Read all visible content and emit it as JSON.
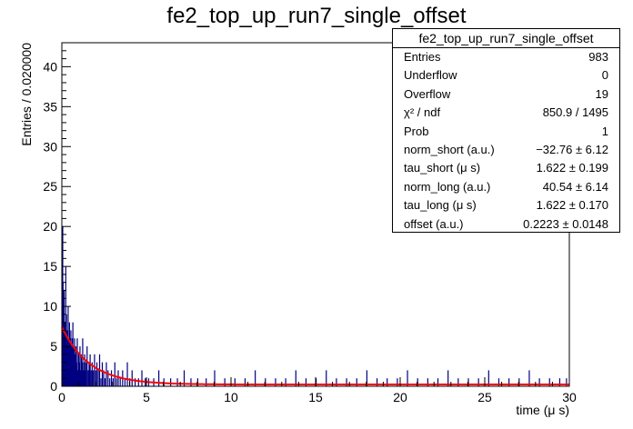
{
  "title": "fe2_top_up_run7_single_offset",
  "stats": {
    "header": "fe2_top_up_run7_single_offset",
    "rows": [
      {
        "label": "Entries",
        "value": "983"
      },
      {
        "label": "Underflow",
        "value": "0"
      },
      {
        "label": "Overflow",
        "value": "19"
      },
      {
        "label": "χ² / ndf",
        "value": "850.9 / 1495"
      },
      {
        "label": "Prob",
        "value": "1"
      },
      {
        "label": "norm_short (a.u.)",
        "value": "−32.76 ± 6.12"
      },
      {
        "label": "tau_short (μ s)",
        "value": "1.622 ± 0.199"
      },
      {
        "label": "norm_long (a.u.)",
        "value": "40.54 ± 6.14"
      },
      {
        "label": "tau_long (μ s)",
        "value": "1.622 ± 0.170"
      },
      {
        "label": "offset (a.u.)",
        "value": "0.2223 ± 0.0148"
      }
    ]
  },
  "colors": {
    "histogram": "#000080",
    "fit": "#ff0000",
    "axis": "#000000"
  },
  "chart_data": {
    "type": "histogram",
    "xlabel": "time (μ s)",
    "ylabel": "Entries / 0.020000",
    "xlim": [
      0,
      30
    ],
    "ylim": [
      0,
      43
    ],
    "xticks": [
      0,
      5,
      10,
      15,
      20,
      25,
      30
    ],
    "yticks": [
      0,
      5,
      10,
      15,
      20,
      25,
      30,
      35,
      40
    ],
    "bin_width": 0.02,
    "bins": [
      [
        0.0,
        3
      ],
      [
        0.02,
        20
      ],
      [
        0.04,
        13
      ],
      [
        0.06,
        9
      ],
      [
        0.08,
        7
      ],
      [
        0.1,
        12
      ],
      [
        0.12,
        6
      ],
      [
        0.14,
        4
      ],
      [
        0.16,
        8
      ],
      [
        0.18,
        5
      ],
      [
        0.2,
        15
      ],
      [
        0.22,
        6
      ],
      [
        0.24,
        9
      ],
      [
        0.26,
        5
      ],
      [
        0.28,
        3
      ],
      [
        0.3,
        7
      ],
      [
        0.32,
        4
      ],
      [
        0.34,
        10
      ],
      [
        0.36,
        6
      ],
      [
        0.38,
        2
      ],
      [
        0.4,
        5
      ],
      [
        0.42,
        8
      ],
      [
        0.44,
        3
      ],
      [
        0.46,
        6
      ],
      [
        0.48,
        4
      ],
      [
        0.5,
        7
      ],
      [
        0.52,
        2
      ],
      [
        0.54,
        5
      ],
      [
        0.56,
        3
      ],
      [
        0.58,
        6
      ],
      [
        0.6,
        4
      ],
      [
        0.62,
        8
      ],
      [
        0.64,
        2
      ],
      [
        0.66,
        5
      ],
      [
        0.68,
        3
      ],
      [
        0.7,
        4
      ],
      [
        0.72,
        6
      ],
      [
        0.74,
        2
      ],
      [
        0.76,
        4
      ],
      [
        0.78,
        3
      ],
      [
        0.8,
        5
      ],
      [
        0.84,
        3
      ],
      [
        0.88,
        6
      ],
      [
        0.92,
        2
      ],
      [
        0.96,
        4
      ],
      [
        1.0,
        3
      ],
      [
        1.04,
        5
      ],
      [
        1.08,
        2
      ],
      [
        1.12,
        4
      ],
      [
        1.16,
        3
      ],
      [
        1.2,
        6
      ],
      [
        1.24,
        2
      ],
      [
        1.28,
        3
      ],
      [
        1.32,
        4
      ],
      [
        1.36,
        2
      ],
      [
        1.4,
        3
      ],
      [
        1.46,
        5
      ],
      [
        1.52,
        2
      ],
      [
        1.58,
        3
      ],
      [
        1.64,
        4
      ],
      [
        1.7,
        2
      ],
      [
        1.76,
        3
      ],
      [
        1.82,
        2
      ],
      [
        1.9,
        4
      ],
      [
        1.96,
        2
      ],
      [
        2.04,
        3
      ],
      [
        2.12,
        2
      ],
      [
        2.2,
        4
      ],
      [
        2.28,
        1
      ],
      [
        2.36,
        3
      ],
      [
        2.44,
        2
      ],
      [
        2.52,
        1
      ],
      [
        2.6,
        3
      ],
      [
        2.7,
        2
      ],
      [
        2.8,
        1
      ],
      [
        2.9,
        2
      ],
      [
        3.0,
        1
      ],
      [
        3.1,
        3
      ],
      [
        3.2,
        1
      ],
      [
        3.3,
        2
      ],
      [
        3.42,
        1
      ],
      [
        3.56,
        2
      ],
      [
        3.7,
        1
      ],
      [
        3.84,
        3
      ],
      [
        3.98,
        1
      ],
      [
        4.12,
        2
      ],
      [
        4.3,
        1
      ],
      [
        4.5,
        1
      ],
      [
        4.7,
        2
      ],
      [
        4.9,
        1
      ],
      [
        5.1,
        1
      ],
      [
        5.4,
        1
      ],
      [
        5.7,
        2
      ],
      [
        6.0,
        1
      ],
      [
        6.4,
        1
      ],
      [
        6.8,
        1
      ],
      [
        7.2,
        2
      ],
      [
        7.6,
        1
      ],
      [
        8.0,
        1
      ],
      [
        8.5,
        1
      ],
      [
        9.0,
        2
      ],
      [
        9.6,
        1
      ],
      [
        10.2,
        1
      ],
      [
        10.8,
        1
      ],
      [
        11.4,
        2
      ],
      [
        12.0,
        1
      ],
      [
        12.6,
        1
      ],
      [
        13.2,
        1
      ],
      [
        13.8,
        2
      ],
      [
        14.4,
        1
      ],
      [
        15.0,
        1
      ],
      [
        15.6,
        2
      ],
      [
        16.2,
        1
      ],
      [
        16.8,
        1
      ],
      [
        17.4,
        1
      ],
      [
        18.0,
        2
      ],
      [
        18.6,
        1
      ],
      [
        19.2,
        1
      ],
      [
        19.8,
        1
      ],
      [
        20.4,
        2
      ],
      [
        21.0,
        1
      ],
      [
        21.6,
        1
      ],
      [
        22.2,
        1
      ],
      [
        22.8,
        2
      ],
      [
        23.4,
        1
      ],
      [
        24.0,
        1
      ],
      [
        24.6,
        1
      ],
      [
        25.2,
        2
      ],
      [
        25.8,
        1
      ],
      [
        26.4,
        1
      ],
      [
        27.0,
        1
      ],
      [
        27.6,
        2
      ],
      [
        28.2,
        1
      ],
      [
        28.8,
        1
      ],
      [
        29.4,
        1
      ],
      [
        29.8,
        1
      ]
    ],
    "fit": {
      "type": "double-exponential + offset",
      "norm_short": -32.76,
      "tau_short": 1.622,
      "norm_long": 40.54,
      "tau_long": 1.622,
      "offset": 0.2223
    }
  }
}
